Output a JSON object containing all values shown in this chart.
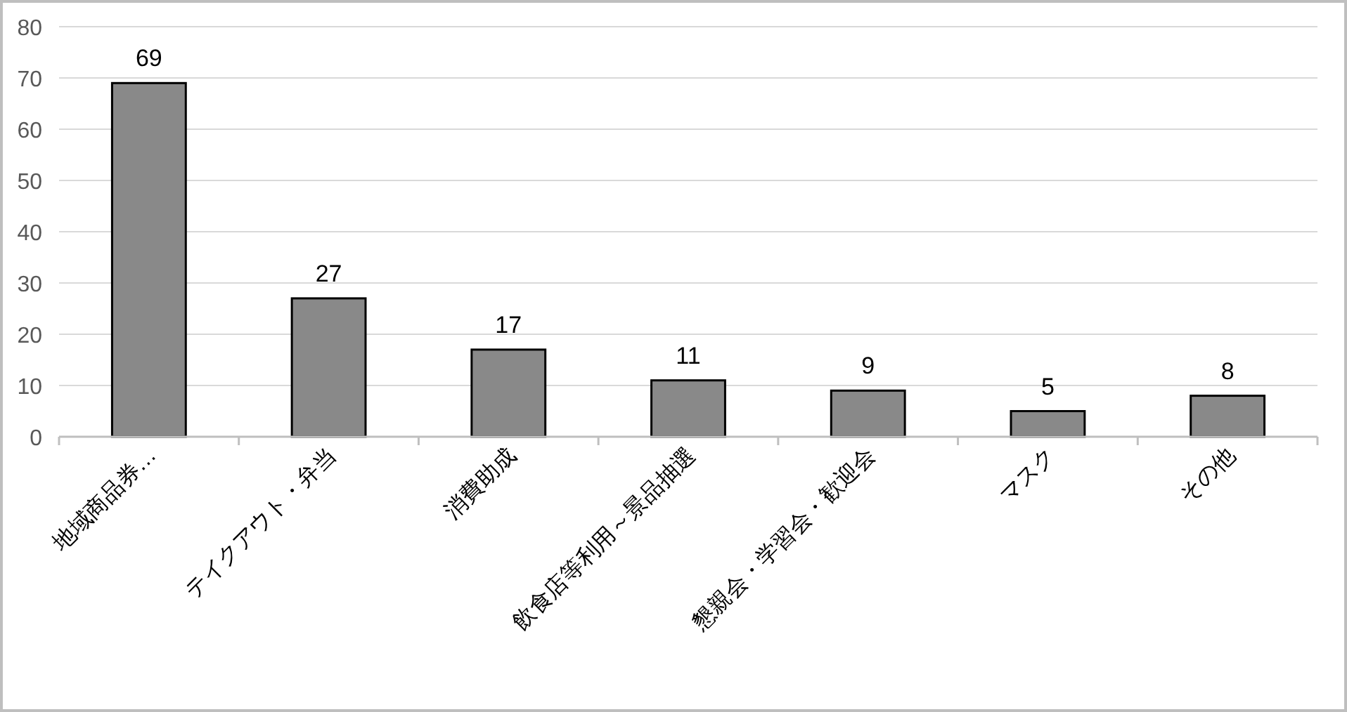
{
  "chart_data": {
    "type": "bar",
    "categories": [
      "地域商品券…",
      "テイクアウト・弁当",
      "消費助成",
      "飲食店等利用～景品抽選",
      "懇親会・学習会・歓迎会",
      "マスク",
      "その他"
    ],
    "values": [
      69,
      27,
      17,
      11,
      9,
      5,
      8
    ],
    "color": "#898989",
    "ylim": [
      0,
      80
    ],
    "yticks": [
      0,
      10,
      20,
      30,
      40,
      50,
      60,
      70,
      80
    ],
    "grid": "y",
    "data_labels": true
  }
}
